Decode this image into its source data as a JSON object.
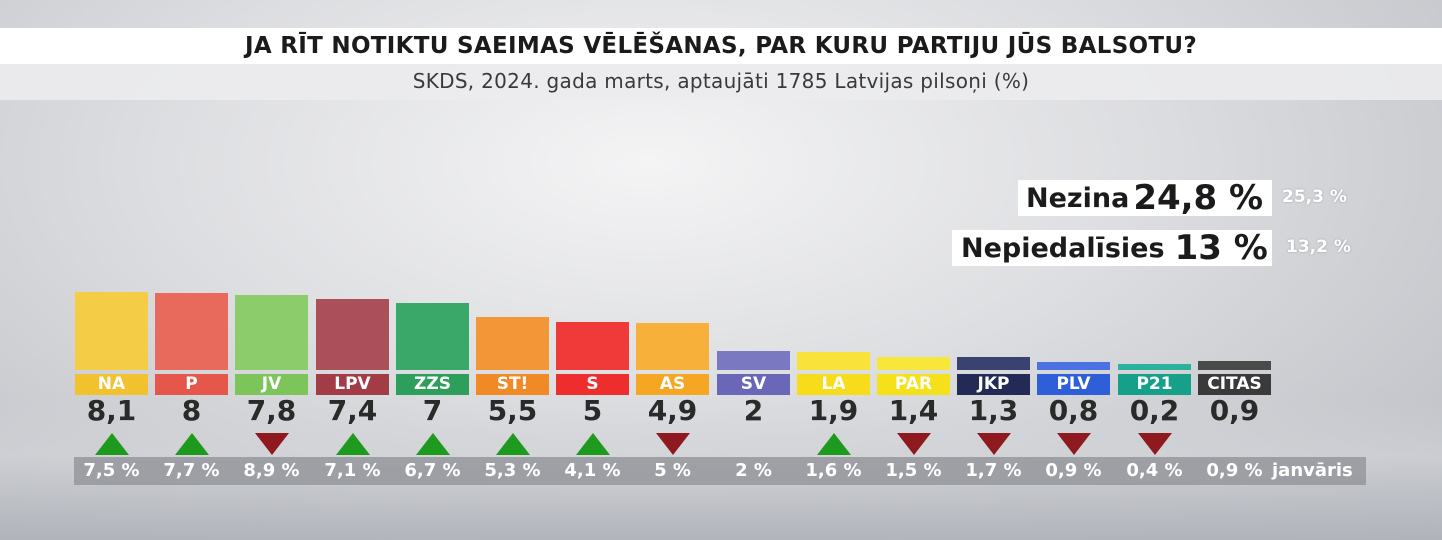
{
  "title": "JA RĪT NOTIKTU SAEIMAS VĒLĒŠANAS, PAR KURU PARTIJU JŪS BALSOTU?",
  "subtitle": "SKDS, 2024. gada marts, aptaujāti 1785 Latvijas pilsoņi (%)",
  "side": {
    "nezina": {
      "label": "Nezina",
      "value": "24,8 %",
      "prev": "25,3 %"
    },
    "nepiedalisies": {
      "label": "Nepiedalīsies",
      "value": "13 %",
      "prev": "13,2 %"
    }
  },
  "previous_label": "janvāris",
  "chart_data": {
    "type": "bar",
    "title": "JA RĪT NOTIKTU SAEIMAS VĒLĒŠANAS, PAR KURU PARTIJU JŪS BALSOTU?",
    "subtitle": "SKDS, 2024. gada marts, aptaujāti 1785 Latvijas pilsoņi (%)",
    "categories": [
      "NA",
      "P",
      "JV",
      "LPV",
      "ZZS",
      "ST!",
      "S",
      "AS",
      "SV",
      "LA",
      "PAR",
      "JKP",
      "PLV",
      "P21",
      "CITAS"
    ],
    "values": [
      8.1,
      8,
      7.8,
      7.4,
      7,
      5.5,
      5,
      4.9,
      2,
      1.9,
      1.4,
      1.3,
      0.8,
      0.2,
      0.9
    ],
    "value_labels": [
      "8,1",
      "8",
      "7,8",
      "7,4",
      "7",
      "5,5",
      "5",
      "4,9",
      "2",
      "1,9",
      "1,4",
      "1,3",
      "0,8",
      "0,2",
      "0,9"
    ],
    "previous_values": [
      7.5,
      7.7,
      8.9,
      7.1,
      6.7,
      5.3,
      4.1,
      5,
      2,
      1.6,
      1.5,
      1.7,
      0.9,
      0.4,
      0.9
    ],
    "previous_labels": [
      "7,5 %",
      "7,7 %",
      "8,9 %",
      "7,1 %",
      "6,7 %",
      "5,3 %",
      "4,1 %",
      "5 %",
      "2 %",
      "1,6 %",
      "1,5 %",
      "1,7 %",
      "0,9 %",
      "0,4 %",
      "0,9 %"
    ],
    "trend": [
      "up",
      "up",
      "down",
      "up",
      "up",
      "up",
      "up",
      "down",
      "none",
      "up",
      "down",
      "down",
      "down",
      "down",
      "none"
    ],
    "colors": [
      "#f2c12e",
      "#e4574a",
      "#7dc55a",
      "#a23c46",
      "#2e9e5b",
      "#f08a26",
      "#ee2d2d",
      "#f5a623",
      "#6a67b8",
      "#f7dc1b",
      "#f5e11a",
      "#222a55",
      "#2f5fd8",
      "#16a08a",
      "#3a3a3a"
    ],
    "top_colors": [
      "#f5cc45",
      "#e86a5c",
      "#8ccc6a",
      "#ab505a",
      "#3aa868",
      "#f29638",
      "#f03a3a",
      "#f7b03a",
      "#7b78c2",
      "#f9e23a",
      "#f7e73a",
      "#3a4270",
      "#4a72e0",
      "#2ab29c",
      "#4a4a4a"
    ],
    "ylim": [
      0,
      8.1
    ],
    "legend": "none"
  }
}
